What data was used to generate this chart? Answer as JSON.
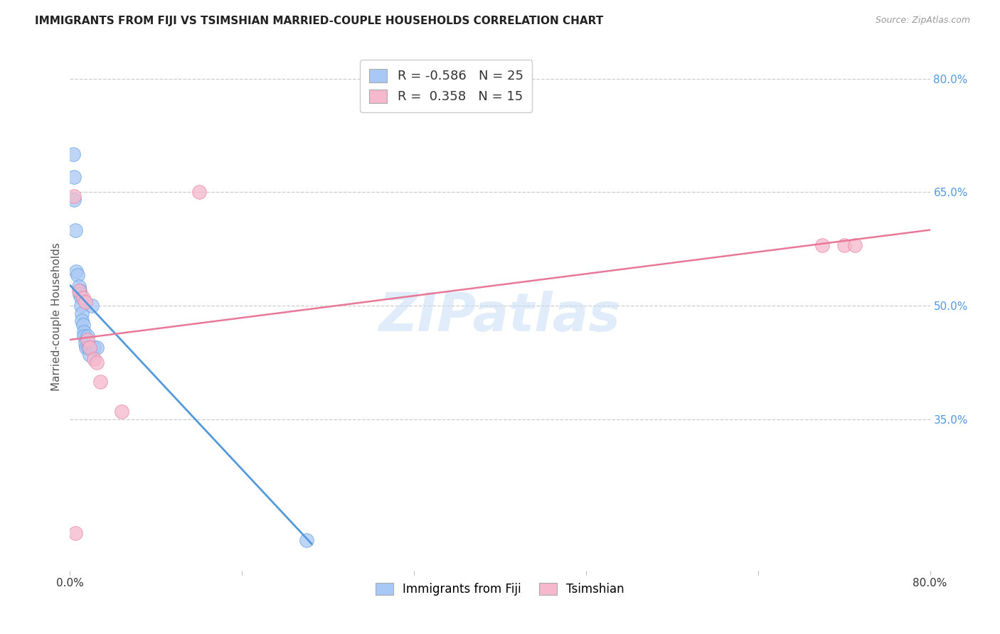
{
  "title": "IMMIGRANTS FROM FIJI VS TSIMSHIAN MARRIED-COUPLE HOUSEHOLDS CORRELATION CHART",
  "source": "Source: ZipAtlas.com",
  "ylabel": "Married-couple Households",
  "xlim": [
    0.0,
    0.8
  ],
  "ylim": [
    0.15,
    0.82
  ],
  "y_tick_positions_right": [
    0.8,
    0.65,
    0.5,
    0.35
  ],
  "y_tick_labels_right": [
    "80.0%",
    "65.0%",
    "50.0%",
    "35.0%"
  ],
  "watermark_zip": "ZIP",
  "watermark_atlas": "atlas",
  "fiji_color": "#a8c8f5",
  "tsimshian_color": "#f5b8cc",
  "fiji_line_color": "#5599dd",
  "tsimshian_line_color": "#e87898",
  "fiji_R": -0.586,
  "fiji_N": 25,
  "tsimshian_R": 0.358,
  "tsimshian_N": 15,
  "fiji_x": [
    0.003,
    0.004,
    0.004,
    0.005,
    0.006,
    0.007,
    0.008,
    0.009,
    0.009,
    0.01,
    0.01,
    0.011,
    0.011,
    0.012,
    0.013,
    0.013,
    0.014,
    0.015,
    0.016,
    0.017,
    0.018,
    0.02,
    0.022,
    0.025,
    0.22
  ],
  "fiji_y": [
    0.7,
    0.67,
    0.64,
    0.6,
    0.545,
    0.54,
    0.525,
    0.52,
    0.515,
    0.51,
    0.5,
    0.49,
    0.48,
    0.475,
    0.465,
    0.46,
    0.45,
    0.445,
    0.46,
    0.445,
    0.435,
    0.5,
    0.445,
    0.445,
    0.19
  ],
  "tsimshian_x": [
    0.004,
    0.008,
    0.012,
    0.014,
    0.016,
    0.018,
    0.022,
    0.025,
    0.028,
    0.048,
    0.12,
    0.7,
    0.72,
    0.73,
    0.005
  ],
  "tsimshian_y": [
    0.645,
    0.52,
    0.51,
    0.505,
    0.455,
    0.445,
    0.43,
    0.425,
    0.4,
    0.36,
    0.65,
    0.58,
    0.58,
    0.58,
    0.2
  ],
  "fiji_line_x": [
    0.0,
    0.225
  ],
  "fiji_line_y": [
    0.527,
    0.185
  ],
  "tsimshian_line_x": [
    0.0,
    0.8
  ],
  "tsimshian_line_y": [
    0.455,
    0.6
  ],
  "background_color": "#ffffff",
  "grid_color": "#cccccc",
  "title_color": "#222222",
  "right_axis_color": "#5599dd"
}
